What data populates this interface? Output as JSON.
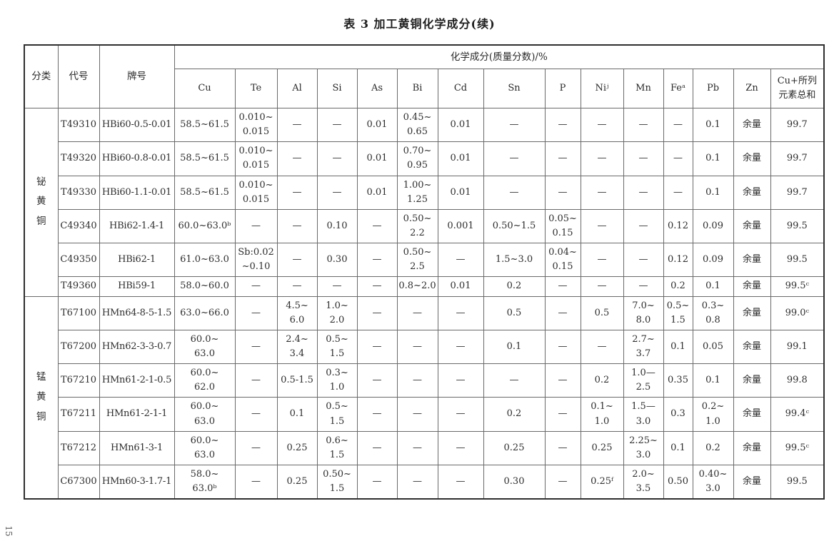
{
  "page": {
    "title": "表 3  加工黄铜化学成分(续)",
    "page_number": "15"
  },
  "table": {
    "header": {
      "category": "分类",
      "code": "代号",
      "grade": "牌号",
      "composition": "化学成分(质量分数)/%",
      "elements": [
        "Cu",
        "Te",
        "Al",
        "Si",
        "As",
        "Bi",
        "Cd",
        "Sn",
        "P",
        "Niʲ",
        "Mn",
        "Feᵃ",
        "Pb",
        "Zn",
        "Cu+所列\n元素总和"
      ]
    },
    "groups": [
      {
        "category": "铋黄铜",
        "rows": [
          {
            "code": "T49310",
            "grade": "HBi60-0.5-0.01",
            "values": [
              "58.5~61.5",
              "0.010~\n0.015",
              "—",
              "—",
              "0.01",
              "0.45~\n0.65",
              "0.01",
              "—",
              "—",
              "—",
              "—",
              "—",
              "0.1",
              "余量",
              "99.7"
            ]
          },
          {
            "code": "T49320",
            "grade": "HBi60-0.8-0.01",
            "values": [
              "58.5~61.5",
              "0.010~\n0.015",
              "—",
              "—",
              "0.01",
              "0.70~\n0.95",
              "0.01",
              "—",
              "—",
              "—",
              "—",
              "—",
              "0.1",
              "余量",
              "99.7"
            ]
          },
          {
            "code": "T49330",
            "grade": "HBi60-1.1-0.01",
            "values": [
              "58.5~61.5",
              "0.010~\n0.015",
              "—",
              "—",
              "0.01",
              "1.00~\n1.25",
              "0.01",
              "—",
              "—",
              "—",
              "—",
              "—",
              "0.1",
              "余量",
              "99.7"
            ]
          },
          {
            "code": "C49340",
            "grade": "HBi62-1.4-1",
            "values": [
              "60.0~63.0ᵇ",
              "—",
              "—",
              "0.10",
              "—",
              "0.50~\n2.2",
              "0.001",
              "0.50~1.5",
              "0.05~\n0.15",
              "—",
              "—",
              "0.12",
              "0.09",
              "余量",
              "99.5"
            ]
          },
          {
            "code": "C49350",
            "grade": "HBi62-1",
            "values": [
              "61.0~63.0",
              "Sb:0.02\n~0.10",
              "—",
              "0.30",
              "—",
              "0.50~\n2.5",
              "—",
              "1.5~3.0",
              "0.04~\n0.15",
              "—",
              "—",
              "0.12",
              "0.09",
              "余量",
              "99.5"
            ]
          },
          {
            "code": "T49360",
            "grade": "HBi59-1",
            "values": [
              "58.0~60.0",
              "—",
              "—",
              "—",
              "—",
              "0.8~2.0",
              "0.01",
              "0.2",
              "—",
              "—",
              "—",
              "0.2",
              "0.1",
              "余量",
              "99.5ᶜ"
            ]
          }
        ]
      },
      {
        "category": "锰黄铜",
        "rows": [
          {
            "code": "T67100",
            "grade": "HMn64-8-5-1.5",
            "values": [
              "63.0~66.0",
              "—",
              "4.5~\n6.0",
              "1.0~\n2.0",
              "—",
              "—",
              "—",
              "0.5",
              "—",
              "0.5",
              "7.0~\n8.0",
              "0.5~\n1.5",
              "0.3~\n0.8",
              "余量",
              "99.0ᶜ"
            ]
          },
          {
            "code": "T67200",
            "grade": "HMn62-3-3-0.7",
            "values": [
              "60.0~\n63.0",
              "—",
              "2.4~\n3.4",
              "0.5~\n1.5",
              "—",
              "—",
              "—",
              "0.1",
              "—",
              "—",
              "2.7~\n3.7",
              "0.1",
              "0.05",
              "余量",
              "99.1"
            ]
          },
          {
            "code": "T67210",
            "grade": "HMn61-2-1-0.5",
            "values": [
              "60.0~\n62.0",
              "—",
              "0.5-1.5",
              "0.3~\n1.0",
              "—",
              "—",
              "—",
              "—",
              "—",
              "0.2",
              "1.0—2.5",
              "0.35",
              "0.1",
              "余量",
              "99.8"
            ]
          },
          {
            "code": "T67211",
            "grade": "HMn61-2-1-1",
            "values": [
              "60.0~\n63.0",
              "—",
              "0.1",
              "0.5~\n1.5",
              "—",
              "—",
              "—",
              "0.2",
              "—",
              "0.1~\n1.0",
              "1.5—3.0",
              "0.3",
              "0.2~\n1.0",
              "余量",
              "99.4ᶜ"
            ]
          },
          {
            "code": "T67212",
            "grade": "HMn61-3-1",
            "values": [
              "60.0~\n63.0",
              "—",
              "0.25",
              "0.6~\n1.5",
              "—",
              "—",
              "—",
              "0.25",
              "—",
              "0.25",
              "2.25~\n3.0",
              "0.1",
              "0.2",
              "余量",
              "99.5ᶜ"
            ]
          },
          {
            "code": "C67300",
            "grade": "HMn60-3-1.7-1",
            "values": [
              "58.0~\n63.0ᵇ",
              "—",
              "0.25",
              "0.50~\n1.5",
              "—",
              "—",
              "—",
              "0.30",
              "—",
              "0.25ᶠ",
              "2.0~\n3.5",
              "0.50",
              "0.40~\n3.0",
              "余量",
              "99.5"
            ]
          }
        ]
      }
    ]
  }
}
